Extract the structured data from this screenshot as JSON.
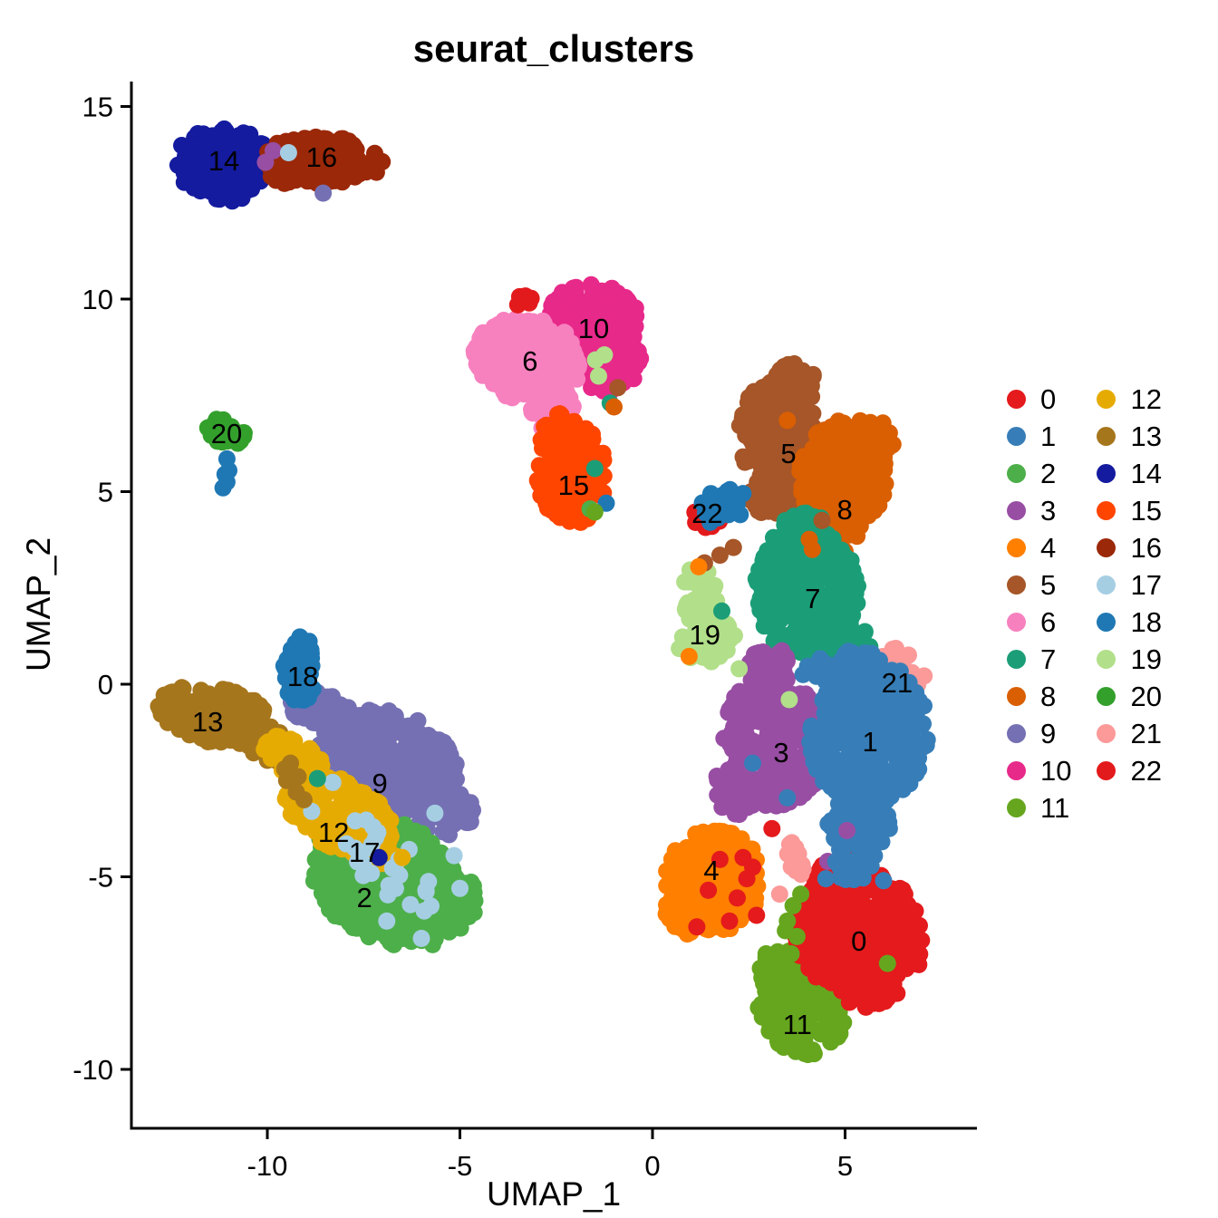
{
  "title": "seurat_clusters",
  "axes": {
    "x": {
      "label": "UMAP_1",
      "ticks": [
        -10,
        -5,
        0,
        5
      ]
    },
    "y": {
      "label": "UMAP_2",
      "ticks": [
        15,
        10,
        5,
        0,
        -5,
        -10
      ]
    }
  },
  "chart_data": {
    "type": "scatter",
    "title": "seurat_clusters",
    "xlabel": "UMAP_1",
    "ylabel": "UMAP_2",
    "xlim": [
      -13.5,
      8.4
    ],
    "ylim": [
      -11.5,
      15.6
    ],
    "grid": false,
    "legend_position": "right",
    "point_radius_px": 9.5,
    "draw_order": [
      "9",
      "13",
      "18",
      "2",
      "12",
      "17",
      "14",
      "16",
      "10",
      "6",
      "15",
      "20",
      "19",
      "5",
      "8",
      "7",
      "3",
      "21",
      "1",
      "22",
      "4",
      "11",
      "0"
    ],
    "clusters": {
      "0": {
        "color": "#E41A1C",
        "label": "0",
        "label_pos": [
          5.36,
          -6.66
        ],
        "blobs": [
          [
            5.3,
            -6.4,
            1.65,
            1.55,
            0,
            380
          ],
          [
            5.0,
            -5.05,
            0.85,
            0.5,
            0,
            55
          ],
          [
            6.55,
            -6.9,
            0.5,
            0.62,
            0,
            35
          ],
          [
            5.65,
            -7.95,
            0.75,
            0.5,
            0,
            40
          ]
        ]
      },
      "1": {
        "color": "#377EB8",
        "label": "1",
        "label_pos": [
          5.65,
          -1.48
        ],
        "blobs": [
          [
            5.6,
            -1.3,
            1.55,
            1.95,
            -5,
            330
          ],
          [
            5.2,
            0.45,
            0.75,
            0.5,
            0,
            45
          ],
          [
            4.45,
            0.3,
            0.6,
            0.4,
            0,
            25
          ],
          [
            5.4,
            -3.6,
            0.85,
            0.75,
            0,
            70
          ],
          [
            5.3,
            -4.5,
            0.5,
            0.45,
            0,
            25
          ]
        ]
      },
      "2": {
        "color": "#4DAF4A",
        "label": "2",
        "label_pos": [
          -7.48,
          -5.53
        ],
        "blobs": [
          [
            -6.9,
            -5.1,
            2.05,
            1.55,
            -28,
            380
          ],
          [
            -5.4,
            -5.6,
            0.85,
            0.85,
            0,
            80
          ],
          [
            -6.4,
            -6.35,
            0.85,
            0.55,
            -20,
            55
          ]
        ]
      },
      "3": {
        "color": "#984EA3",
        "label": "3",
        "label_pos": [
          3.34,
          -1.76
        ],
        "blobs": [
          [
            3.2,
            -1.5,
            1.35,
            1.75,
            8,
            260
          ],
          [
            3.0,
            0.4,
            0.58,
            0.62,
            0,
            45
          ],
          [
            2.25,
            -2.7,
            0.65,
            0.7,
            0,
            40
          ]
        ]
      },
      "4": {
        "color": "#FF7F00",
        "label": "4",
        "label_pos": [
          1.53,
          -4.82
        ],
        "blobs": [
          [
            1.6,
            -5.1,
            1.25,
            1.35,
            10,
            230
          ],
          [
            0.9,
            -5.95,
            0.58,
            0.6,
            0,
            45
          ],
          [
            1.95,
            -4.35,
            0.7,
            0.42,
            0,
            35
          ]
        ]
      },
      "5": {
        "color": "#A65628",
        "label": "5",
        "label_pos": [
          3.53,
          6.0
        ],
        "blobs": [
          [
            3.3,
            6.35,
            1.05,
            1.5,
            10,
            230
          ],
          [
            3.65,
            7.75,
            0.62,
            0.58,
            0,
            50
          ],
          [
            3.3,
            4.85,
            0.8,
            0.6,
            0,
            50
          ]
        ]
      },
      "6": {
        "color": "#F781BF",
        "label": "6",
        "label_pos": [
          -3.18,
          8.4
        ],
        "blobs": [
          [
            -3.25,
            8.45,
            1.4,
            1.1,
            -15,
            230
          ],
          [
            -2.6,
            7.25,
            0.6,
            0.8,
            15,
            70
          ],
          [
            -4.15,
            8.55,
            0.5,
            0.55,
            0,
            40
          ]
        ]
      },
      "7": {
        "color": "#1B9E77",
        "label": "7",
        "label_pos": [
          4.16,
          2.24
        ],
        "blobs": [
          [
            4.0,
            2.4,
            1.35,
            1.65,
            0,
            260
          ],
          [
            3.85,
            3.95,
            0.8,
            0.5,
            0,
            45
          ],
          [
            4.85,
            0.95,
            0.75,
            0.65,
            0,
            45
          ],
          [
            5.35,
            1.0,
            0.45,
            0.4,
            0,
            18
          ]
        ]
      },
      "8": {
        "color": "#D95F02",
        "label": "8",
        "label_pos": [
          4.99,
          4.54
        ],
        "blobs": [
          [
            4.95,
            5.4,
            1.15,
            1.5,
            -10,
            230
          ],
          [
            5.65,
            6.3,
            0.6,
            0.62,
            0,
            45
          ],
          [
            4.7,
            3.9,
            0.7,
            0.5,
            0,
            40
          ]
        ]
      },
      "9": {
        "color": "#7570B3",
        "label": "9",
        "label_pos": [
          -7.08,
          -2.56
        ],
        "blobs": [
          [
            -6.9,
            -2.1,
            1.9,
            1.4,
            -18,
            340
          ],
          [
            -8.55,
            -0.75,
            0.95,
            0.5,
            -20,
            70
          ],
          [
            -5.4,
            -3.3,
            0.75,
            0.65,
            0,
            50
          ]
        ]
      },
      "10": {
        "color": "#E7298A",
        "label": "10",
        "label_pos": [
          -1.53,
          9.25
        ],
        "blobs": [
          [
            -1.6,
            9.3,
            1.3,
            1.1,
            0,
            210
          ],
          [
            -1.1,
            8.35,
            0.8,
            0.85,
            0,
            80
          ]
        ]
      },
      "11": {
        "color": "#66A61E",
        "label": "11",
        "label_pos": [
          3.76,
          -8.82
        ],
        "blobs": [
          [
            3.9,
            -8.35,
            1.15,
            1.3,
            10,
            190
          ],
          [
            3.35,
            -7.45,
            0.62,
            0.6,
            0,
            45
          ]
        ]
      },
      "12": {
        "color": "#E6AB02",
        "label": "12",
        "label_pos": [
          -8.28,
          -3.84
        ],
        "blobs": [
          [
            -8.15,
            -3.35,
            1.55,
            0.88,
            -28,
            180
          ],
          [
            -9.35,
            -1.95,
            0.85,
            0.55,
            -30,
            55
          ],
          [
            -7.2,
            -4.35,
            0.7,
            0.45,
            -30,
            35
          ]
        ]
      },
      "13": {
        "color": "#A6761D",
        "label": "13",
        "label_pos": [
          -11.55,
          -0.96
        ],
        "blobs": [
          [
            -11.35,
            -0.8,
            1.5,
            0.72,
            -12,
            190
          ],
          [
            -9.95,
            -1.6,
            0.75,
            0.48,
            -25,
            45
          ]
        ]
      },
      "14": {
        "color": "#141B9E",
        "label": "14",
        "label_pos": [
          -11.13,
          13.6
        ],
        "blobs": [
          [
            -11.15,
            13.55,
            1.25,
            0.88,
            0,
            150
          ],
          [
            -11.0,
            12.95,
            0.55,
            0.45,
            0,
            25
          ]
        ]
      },
      "15": {
        "color": "#FF4500",
        "label": "15",
        "label_pos": [
          -2.05,
          5.18
        ],
        "blobs": [
          [
            -2.1,
            5.45,
            0.9,
            1.3,
            0,
            170
          ],
          [
            -2.35,
            6.55,
            0.62,
            0.5,
            0,
            40
          ]
        ]
      },
      "16": {
        "color": "#9B2808",
        "label": "16",
        "label_pos": [
          -8.59,
          13.69
        ],
        "blobs": [
          [
            -8.55,
            13.6,
            1.55,
            0.62,
            -3,
            150
          ],
          [
            -9.6,
            13.4,
            0.45,
            0.4,
            0,
            25
          ]
        ]
      },
      "17": {
        "color": "#A6CEE3",
        "label": "17",
        "label_pos": [
          -7.48,
          -4.35
        ],
        "blobs": [
          [
            -7.4,
            -4.35,
            1.3,
            0.8,
            -28,
            18
          ],
          [
            -6.4,
            -5.3,
            1.0,
            0.7,
            -25,
            10
          ]
        ]
      },
      "18": {
        "color": "#1F78B4",
        "label": "18",
        "label_pos": [
          -9.08,
          0.21
        ],
        "blobs": [
          [
            -9.15,
            0.3,
            0.45,
            0.75,
            0,
            55
          ],
          [
            -9.05,
            1.05,
            0.27,
            0.27,
            0,
            10
          ]
        ]
      },
      "19": {
        "color": "#B2DF8A",
        "label": "19",
        "label_pos": [
          1.36,
          1.29
        ],
        "blobs": [
          [
            1.3,
            2.15,
            0.48,
            0.95,
            10,
            55
          ],
          [
            1.6,
            1.25,
            0.55,
            0.68,
            -20,
            40
          ],
          [
            1.1,
            0.95,
            0.42,
            0.5,
            0,
            25
          ]
        ]
      },
      "20": {
        "color": "#33A02C",
        "label": "20",
        "label_pos": [
          -11.06,
          6.52
        ],
        "blobs": [
          [
            -11.1,
            6.55,
            0.58,
            0.35,
            -20,
            30
          ]
        ]
      },
      "21": {
        "color": "#FB9A99",
        "label": "21",
        "label_pos": [
          6.35,
          0.05
        ],
        "blobs": [
          [
            6.3,
            0.55,
            0.45,
            0.4,
            0,
            22
          ],
          [
            6.75,
            -0.1,
            0.35,
            0.5,
            -25,
            18
          ],
          [
            6.1,
            0.2,
            0.3,
            0.3,
            0,
            10
          ]
        ]
      },
      "22": {
        "color": "#E31A1C",
        "label": "22",
        "label_pos": [
          1.42,
          4.45
        ],
        "blobs": [
          [
            1.45,
            4.35,
            0.4,
            0.3,
            0,
            16
          ]
        ]
      }
    },
    "stray_points": [
      {
        "color_of": "9",
        "points": [
          [
            -8.55,
            12.75
          ]
        ]
      },
      {
        "color_of": "3",
        "points": [
          [
            -9.85,
            13.85
          ],
          [
            -10.05,
            13.55
          ],
          [
            5.05,
            -3.8
          ],
          [
            4.55,
            -4.6
          ]
        ]
      },
      {
        "color_of": "17",
        "points": [
          [
            -9.45,
            13.8
          ],
          [
            -8.85,
            -3.3
          ],
          [
            -5.65,
            -3.35
          ],
          [
            -5.15,
            -4.45
          ],
          [
            -6.9,
            -6.15
          ],
          [
            -8.3,
            -2.55
          ],
          [
            -5.0,
            -5.3
          ],
          [
            -6.0,
            -6.6
          ]
        ]
      },
      {
        "color_of": "16",
        "points": [
          [
            -7.2,
            13.45
          ]
        ]
      },
      {
        "color_of": "22",
        "points": [
          [
            -3.35,
            9.95
          ],
          [
            -3.2,
            9.9
          ],
          [
            -3.5,
            9.85
          ],
          [
            -3.3,
            10.08
          ],
          [
            -3.15,
            10.02
          ],
          [
            -3.45,
            10.06
          ]
        ]
      },
      {
        "color_of": "19",
        "points": [
          [
            -1.48,
            8.42
          ],
          [
            -1.4,
            8.0
          ],
          [
            -1.25,
            8.55
          ],
          [
            2.25,
            0.4
          ],
          [
            3.55,
            -0.4
          ]
        ]
      },
      {
        "color_of": "5",
        "points": [
          [
            -0.9,
            7.7
          ],
          [
            1.75,
            3.35
          ],
          [
            2.1,
            3.55
          ],
          [
            1.35,
            3.15
          ],
          [
            4.4,
            4.25
          ]
        ]
      },
      {
        "color_of": "7",
        "points": [
          [
            -1.1,
            7.3
          ],
          [
            1.8,
            1.9
          ],
          [
            -8.7,
            -2.45
          ],
          [
            -1.5,
            5.6
          ]
        ]
      },
      {
        "color_of": "2",
        "points": [
          [
            -1.62,
            4.55
          ]
        ]
      },
      {
        "color_of": "18",
        "points": [
          [
            -1.2,
            4.7
          ],
          [
            -11.05,
            5.85
          ],
          [
            -11.1,
            5.45
          ],
          [
            -11.05,
            5.25
          ],
          [
            -11.15,
            5.1
          ],
          [
            -11.0,
            5.55
          ],
          [
            2.35,
            4.95
          ]
        ],
        "blobs": [
          [
            1.8,
            4.6,
            0.5,
            0.55,
            35,
            30
          ]
        ]
      },
      {
        "color_of": "4",
        "points": [
          [
            1.2,
            3.05
          ],
          [
            0.95,
            0.72
          ]
        ]
      },
      {
        "color_of": "8",
        "points": [
          [
            3.5,
            6.85
          ],
          [
            3.85,
            5.6
          ],
          [
            4.07,
            3.76
          ],
          [
            4.15,
            3.5
          ],
          [
            -1.0,
            7.2
          ]
        ]
      },
      {
        "color_of": "1",
        "points": [
          [
            2.6,
            -2.05
          ],
          [
            3.5,
            -2.95
          ],
          [
            4.5,
            -5.05
          ],
          [
            6.0,
            -5.1
          ]
        ],
        "blobs": [
          [
            5.15,
            -4.75,
            0.6,
            0.35,
            0,
            16
          ]
        ]
      },
      {
        "color_of": "0",
        "points": [
          [
            1.75,
            -4.55
          ],
          [
            2.35,
            -4.5
          ],
          [
            2.6,
            -4.75
          ],
          [
            1.45,
            -5.35
          ],
          [
            2.2,
            -5.55
          ],
          [
            2.0,
            -6.15
          ],
          [
            2.7,
            -6.0
          ],
          [
            1.15,
            -6.3
          ],
          [
            2.45,
            -5.05
          ],
          [
            4.25,
            -7.6
          ],
          [
            3.1,
            -3.75
          ]
        ]
      },
      {
        "color_of": "11",
        "points": [
          [
            3.6,
            -7.0
          ],
          [
            3.75,
            -6.55
          ],
          [
            3.5,
            -6.15
          ],
          [
            3.65,
            -5.75
          ],
          [
            3.85,
            -5.45
          ],
          [
            3.45,
            -6.4
          ],
          [
            6.1,
            -7.25
          ],
          [
            -1.5,
            4.47
          ]
        ]
      },
      {
        "color_of": "21",
        "points": [
          [
            3.3,
            -5.45
          ]
        ],
        "blobs": [
          [
            3.7,
            -4.6,
            0.22,
            0.5,
            10,
            14
          ]
        ]
      },
      {
        "color_of": "13",
        "points": [
          [
            -9.4,
            -2.05
          ],
          [
            -9.2,
            -2.4
          ],
          [
            -9.5,
            -2.5
          ],
          [
            -9.25,
            -2.8
          ],
          [
            -9.05,
            -3.0
          ],
          [
            -9.55,
            -2.2
          ]
        ]
      },
      {
        "color_of": "12",
        "points": [
          [
            -6.5,
            -4.5
          ]
        ]
      },
      {
        "color_of": "14",
        "points": [
          [
            -7.1,
            -4.5
          ]
        ]
      }
    ]
  },
  "legend": {
    "columns": [
      [
        "0",
        "1",
        "2",
        "3",
        "4",
        "5",
        "6",
        "7",
        "8",
        "9",
        "10",
        "11"
      ],
      [
        "12",
        "13",
        "14",
        "15",
        "16",
        "17",
        "18",
        "19",
        "20",
        "21",
        "22"
      ]
    ]
  }
}
